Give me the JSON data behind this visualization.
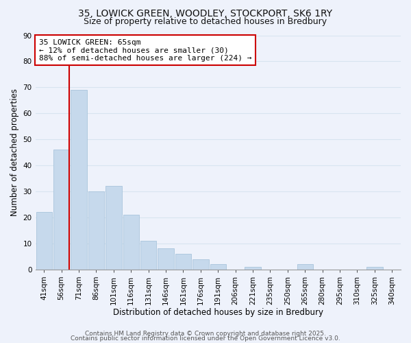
{
  "title_line1": "35, LOWICK GREEN, WOODLEY, STOCKPORT, SK6 1RY",
  "title_line2": "Size of property relative to detached houses in Bredbury",
  "xlabel": "Distribution of detached houses by size in Bredbury",
  "ylabel": "Number of detached properties",
  "categories": [
    "41sqm",
    "56sqm",
    "71sqm",
    "86sqm",
    "101sqm",
    "116sqm",
    "131sqm",
    "146sqm",
    "161sqm",
    "176sqm",
    "191sqm",
    "206sqm",
    "221sqm",
    "235sqm",
    "250sqm",
    "265sqm",
    "280sqm",
    "295sqm",
    "310sqm",
    "325sqm",
    "340sqm"
  ],
  "values": [
    22,
    46,
    69,
    30,
    32,
    21,
    11,
    8,
    6,
    4,
    2,
    0,
    1,
    0,
    0,
    2,
    0,
    0,
    0,
    1,
    0
  ],
  "bar_color": "#c6d9ec",
  "bar_edge_color": "#a8c4dc",
  "vline_color": "#cc0000",
  "vline_x": 1.5,
  "ylim": [
    0,
    90
  ],
  "yticks": [
    0,
    10,
    20,
    30,
    40,
    50,
    60,
    70,
    80,
    90
  ],
  "annotation_title": "35 LOWICK GREEN: 65sqm",
  "annotation_line1": "← 12% of detached houses are smaller (30)",
  "annotation_line2": "88% of semi-detached houses are larger (224) →",
  "annotation_box_color": "#ffffff",
  "annotation_box_edge": "#cc0000",
  "footer_line1": "Contains HM Land Registry data © Crown copyright and database right 2025.",
  "footer_line2": "Contains public sector information licensed under the Open Government Licence v3.0.",
  "background_color": "#eef2fb",
  "grid_color": "#d8e4f0",
  "title_fontsize": 10,
  "subtitle_fontsize": 9,
  "axis_label_fontsize": 8.5,
  "tick_fontsize": 7.5,
  "annotation_fontsize": 8,
  "footer_fontsize": 6.5
}
